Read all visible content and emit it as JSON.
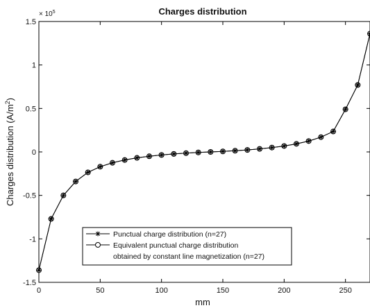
{
  "chart_data": {
    "type": "line",
    "title": "Charges distribution",
    "xlabel": "mm",
    "ylabel_main": "Charges distribution (A/m",
    "ylabel_sup": "2",
    "ylabel_tail": ")",
    "y_multiplier_base": "× 10",
    "y_multiplier_exp": "5",
    "xlim": [
      0,
      270
    ],
    "ylim": [
      -1.5,
      1.5
    ],
    "xticks": [
      0,
      50,
      100,
      150,
      200,
      250
    ],
    "yticks": [
      -1.5,
      -1,
      -0.5,
      0,
      0.5,
      1,
      1.5
    ],
    "ytick_labels": [
      "-1.5",
      "-1",
      "-0.5",
      "0",
      "0.5",
      "1",
      "1.5"
    ],
    "grid": false,
    "legend_position": "bottom-center",
    "series": [
      {
        "name": "Punctual charge distribution (n=27)",
        "marker": "star",
        "x": [
          0,
          10,
          20,
          30,
          40,
          50,
          60,
          70,
          80,
          90,
          100,
          110,
          120,
          130,
          140,
          150,
          160,
          170,
          180,
          190,
          200,
          210,
          220,
          230,
          240,
          250,
          260,
          270
        ],
        "y": [
          -1.36,
          -0.77,
          -0.5,
          -0.34,
          -0.235,
          -0.17,
          -0.125,
          -0.093,
          -0.068,
          -0.05,
          -0.035,
          -0.023,
          -0.014,
          -0.006,
          0.0,
          0.006,
          0.014,
          0.023,
          0.035,
          0.05,
          0.068,
          0.093,
          0.125,
          0.17,
          0.235,
          0.49,
          0.77,
          1.36
        ]
      },
      {
        "name_line1": "Equivalent punctual charge distribution",
        "name_line2": "obtained by constant line magnetization (n=27)",
        "marker": "circle",
        "x": [
          0,
          10,
          20,
          30,
          40,
          50,
          60,
          70,
          80,
          90,
          100,
          110,
          120,
          130,
          140,
          150,
          160,
          170,
          180,
          190,
          200,
          210,
          220,
          230,
          240,
          250,
          260,
          270
        ],
        "y": [
          -1.36,
          -0.77,
          -0.5,
          -0.34,
          -0.235,
          -0.17,
          -0.125,
          -0.093,
          -0.068,
          -0.05,
          -0.035,
          -0.023,
          -0.014,
          -0.006,
          0.0,
          0.006,
          0.014,
          0.023,
          0.035,
          0.05,
          0.068,
          0.093,
          0.125,
          0.17,
          0.235,
          0.49,
          0.77,
          1.36
        ]
      }
    ]
  }
}
